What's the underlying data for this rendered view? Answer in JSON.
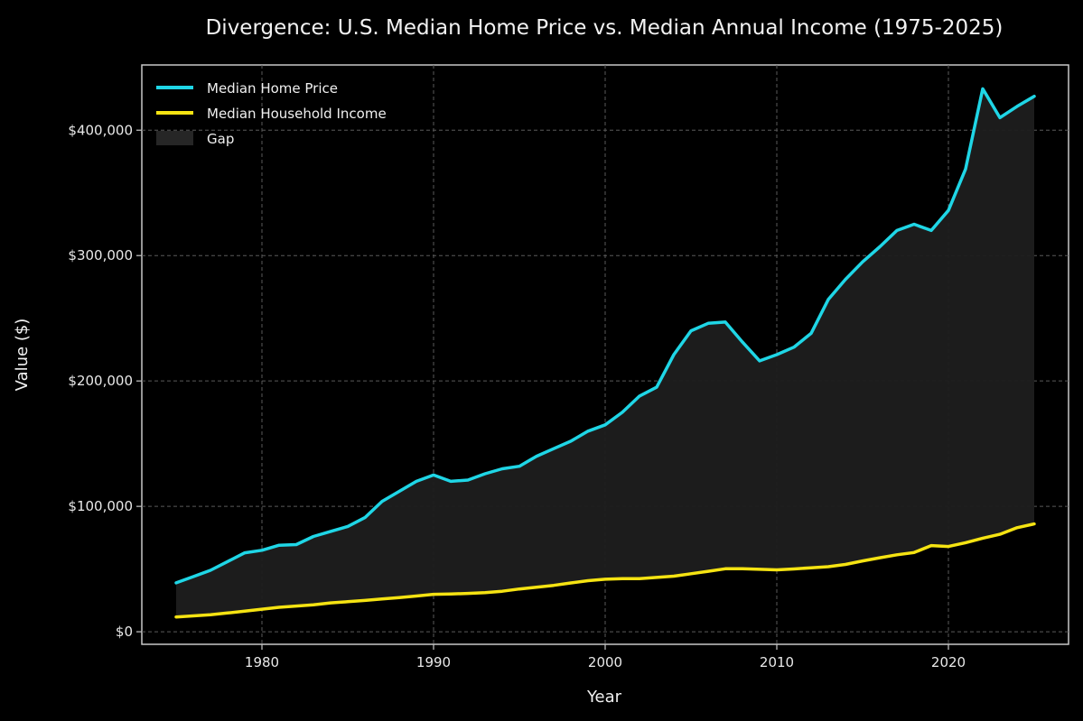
{
  "chart_data": {
    "type": "line",
    "title": "Divergence: U.S. Median Home Price vs. Median Annual Income (1975-2025)",
    "xlabel": "Year",
    "ylabel": "Value ($)",
    "xlim": [
      1973,
      2027
    ],
    "ylim": [
      -10000,
      452000
    ],
    "xticks": [
      1980,
      1990,
      2000,
      2010,
      2020
    ],
    "xtick_labels": [
      "1980",
      "1990",
      "2000",
      "2010",
      "2020"
    ],
    "yticks": [
      0,
      100000,
      200000,
      300000,
      400000
    ],
    "ytick_labels": [
      "$0",
      "$100,000",
      "$200,000",
      "$300,000",
      "$400,000"
    ],
    "grid": true,
    "legend_position": "top-left",
    "x": [
      1975,
      1976,
      1977,
      1978,
      1979,
      1980,
      1981,
      1982,
      1983,
      1984,
      1985,
      1986,
      1987,
      1988,
      1989,
      1990,
      1991,
      1992,
      1993,
      1994,
      1995,
      1996,
      1997,
      1998,
      1999,
      2000,
      2001,
      2002,
      2003,
      2004,
      2005,
      2006,
      2007,
      2008,
      2009,
      2010,
      2011,
      2012,
      2013,
      2014,
      2015,
      2016,
      2017,
      2018,
      2019,
      2020,
      2021,
      2022,
      2023,
      2024,
      2025
    ],
    "series": [
      {
        "name": "Median Home Price",
        "color": "#1fd6e6",
        "values": [
          39000,
          44000,
          49000,
          56000,
          63000,
          65000,
          69000,
          69500,
          76000,
          80000,
          84000,
          91000,
          104000,
          112000,
          120000,
          125000,
          120000,
          121000,
          126000,
          130000,
          132000,
          140000,
          146000,
          152000,
          160000,
          165000,
          175000,
          188000,
          195000,
          221000,
          240000,
          246000,
          247000,
          231000,
          216000,
          221000,
          227000,
          238000,
          265000,
          281000,
          295000,
          307000,
          320000,
          325000,
          320000,
          336000,
          369000,
          433000,
          410000,
          419000,
          427000
        ]
      },
      {
        "name": "Median Household Income",
        "color": "#f5e312",
        "values": [
          11800,
          12700,
          13600,
          15000,
          16500,
          18000,
          19500,
          20500,
          21500,
          23000,
          24000,
          25000,
          26200,
          27200,
          28500,
          29900,
          30100,
          30600,
          31200,
          32300,
          34100,
          35500,
          37000,
          38900,
          40700,
          41900,
          42300,
          42400,
          43300,
          44300,
          46300,
          48200,
          50200,
          50300,
          49800,
          49400,
          50100,
          51000,
          51900,
          53700,
          56500,
          59000,
          61400,
          63200,
          68700,
          68000,
          71000,
          74600,
          77700,
          83000,
          86000
        ]
      },
      {
        "name": "Gap",
        "color": "#1e1e1e",
        "type": "fill_between"
      }
    ]
  }
}
